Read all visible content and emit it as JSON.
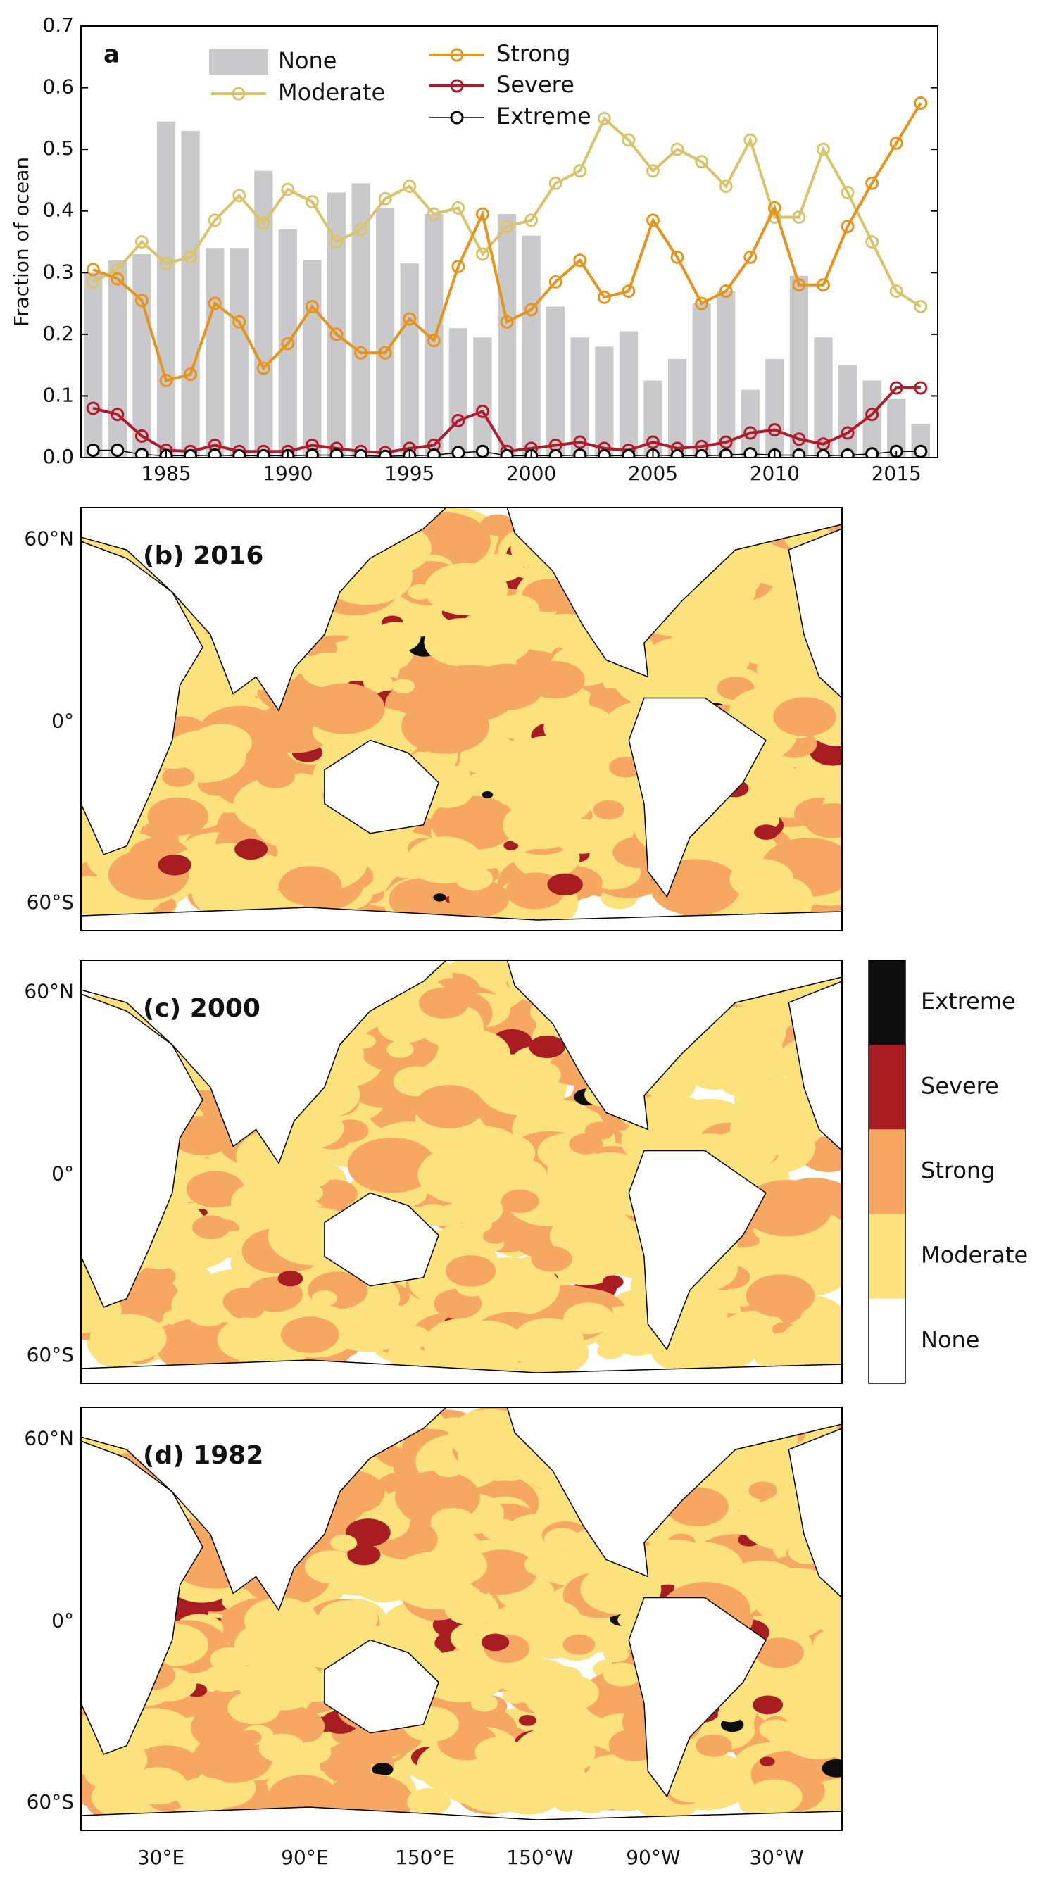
{
  "chart_data": [
    {
      "type": "combo",
      "panel_label": "a",
      "ylabel": "Fraction of ocean",
      "x": [
        1982,
        1983,
        1984,
        1985,
        1986,
        1987,
        1988,
        1989,
        1990,
        1991,
        1992,
        1993,
        1994,
        1995,
        1996,
        1997,
        1998,
        1999,
        2000,
        2001,
        2002,
        2003,
        2004,
        2005,
        2006,
        2007,
        2008,
        2009,
        2010,
        2011,
        2012,
        2013,
        2014,
        2015,
        2016
      ],
      "xlim": [
        1981.5,
        2016.7
      ],
      "xticks": [
        1985,
        1990,
        1995,
        2000,
        2005,
        2010,
        2015
      ],
      "ylim": [
        0,
        0.7
      ],
      "yticks": [
        {
          "value": 0,
          "label": "0.0"
        },
        0.1,
        0.2,
        0.3,
        0.4,
        0.5,
        0.6,
        0.7
      ],
      "legend": "top",
      "series": [
        {
          "name": "None",
          "kind": "bar",
          "color": "#c9c9cb",
          "values": [
            0.3,
            0.32,
            0.33,
            0.545,
            0.53,
            0.34,
            0.34,
            0.465,
            0.37,
            0.32,
            0.43,
            0.445,
            0.405,
            0.315,
            0.395,
            0.21,
            0.195,
            0.395,
            0.36,
            0.245,
            0.195,
            0.18,
            0.205,
            0.125,
            0.16,
            0.25,
            0.27,
            0.11,
            0.16,
            0.295,
            0.195,
            0.15,
            0.125,
            0.095,
            0.055
          ]
        },
        {
          "name": "Moderate",
          "kind": "line",
          "color": "#d9c46c",
          "values": [
            0.285,
            0.305,
            0.35,
            0.315,
            0.325,
            0.385,
            0.425,
            0.38,
            0.435,
            0.415,
            0.35,
            0.37,
            0.42,
            0.44,
            0.395,
            0.405,
            0.33,
            0.375,
            0.385,
            0.445,
            0.465,
            0.55,
            0.515,
            0.465,
            0.5,
            0.48,
            0.44,
            0.515,
            0.39,
            0.39,
            0.5,
            0.43,
            0.35,
            0.27,
            0.245
          ]
        },
        {
          "name": "Strong",
          "kind": "line",
          "color": "#e5951f",
          "values": [
            0.305,
            0.29,
            0.255,
            0.125,
            0.135,
            0.25,
            0.22,
            0.145,
            0.185,
            0.245,
            0.2,
            0.17,
            0.17,
            0.225,
            0.19,
            0.31,
            0.395,
            0.22,
            0.24,
            0.285,
            0.32,
            0.26,
            0.27,
            0.385,
            0.325,
            0.25,
            0.27,
            0.325,
            0.405,
            0.28,
            0.28,
            0.375,
            0.445,
            0.51,
            0.575
          ]
        },
        {
          "name": "Severe",
          "kind": "line",
          "color": "#b01c2b",
          "values": [
            0.08,
            0.07,
            0.035,
            0.012,
            0.01,
            0.02,
            0.01,
            0.01,
            0.01,
            0.02,
            0.015,
            0.01,
            0.008,
            0.015,
            0.02,
            0.06,
            0.075,
            0.01,
            0.015,
            0.02,
            0.025,
            0.015,
            0.012,
            0.025,
            0.015,
            0.018,
            0.025,
            0.04,
            0.045,
            0.03,
            0.022,
            0.04,
            0.07,
            0.113,
            0.113
          ]
        },
        {
          "name": "Extreme",
          "kind": "line",
          "color": "#000000",
          "values": [
            0.012,
            0.012,
            0.005,
            0.003,
            0.003,
            0.004,
            0.003,
            0.003,
            0.003,
            0.004,
            0.004,
            0.003,
            0.002,
            0.003,
            0.004,
            0.008,
            0.01,
            0.003,
            0.003,
            0.003,
            0.004,
            0.003,
            0.003,
            0.004,
            0.003,
            0.003,
            0.004,
            0.006,
            0.004,
            0.004,
            0.003,
            0.004,
            0.006,
            0.01,
            0.01
          ]
        }
      ]
    },
    {
      "type": "map",
      "panels": [
        {
          "label": "(b) 2016"
        },
        {
          "label": "(c) 2000"
        },
        {
          "label": "(d) 1982"
        }
      ],
      "lat_labels": [
        "60°N",
        "0°",
        "60°S"
      ],
      "lon_labels": [
        "30°E",
        "90°E",
        "150°E",
        "150°W",
        "90°W",
        "30°W"
      ],
      "colorbar": {
        "categories": [
          "Extreme",
          "Severe",
          "Strong",
          "Moderate",
          "None"
        ],
        "colors": [
          "#0d0d0d",
          "#a81d22",
          "#f6a862",
          "#fbe27c",
          "#ffffff"
        ]
      }
    }
  ]
}
